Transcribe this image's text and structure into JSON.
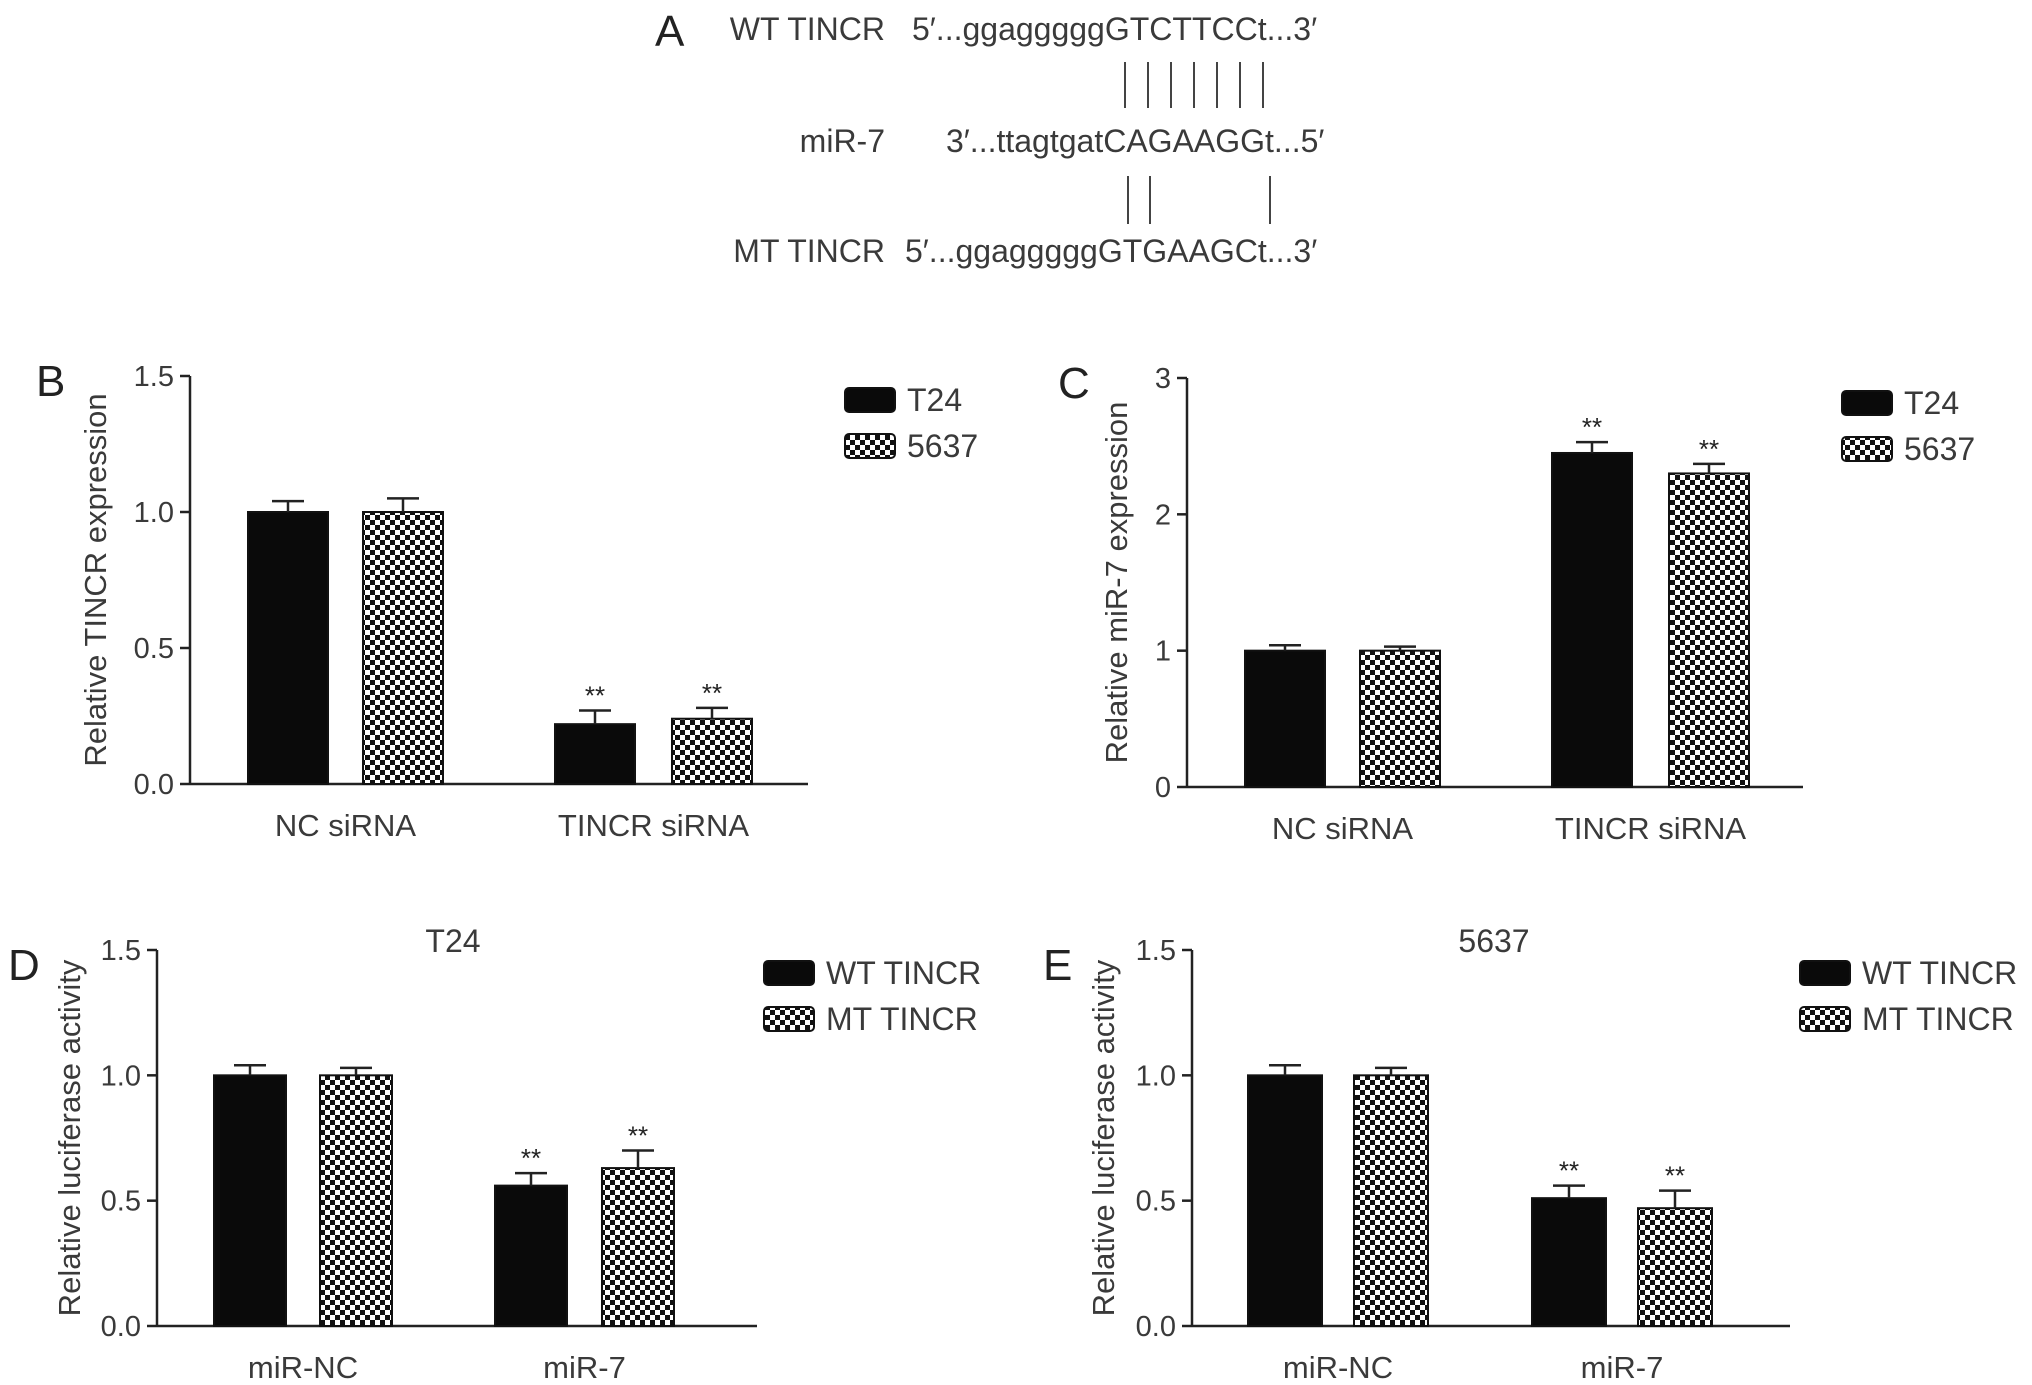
{
  "panelA": {
    "letter": "A",
    "rows": [
      {
        "label": "WT TINCR",
        "seq": "5′...ggagggggGTCTTCCt...3′",
        "lines": [
          0,
          1,
          2,
          3,
          4,
          5,
          6
        ]
      },
      {
        "label": "miR-7",
        "seq": "3′...ttagtgatCAGAAGGt...5′",
        "lines": [
          0,
          1,
          6
        ]
      },
      {
        "label": "MT TINCR",
        "seq": "5′...ggagggggGTGAAGCt...3′"
      }
    ]
  },
  "colors": {
    "solid": "#0a0a0a",
    "check_dark": "#111111",
    "check_light": "#ffffff",
    "axis": "#222222"
  },
  "chart_data": [
    {
      "letter": "B",
      "type": "bar",
      "title": "",
      "ylabel": "Relative TINCR expression",
      "ylim": [
        0,
        1.5
      ],
      "yticks": [
        "0.0",
        "0.5",
        "1.0",
        "1.5"
      ],
      "categories": [
        "NC siRNA",
        "TINCR siRNA"
      ],
      "series": [
        {
          "name": "T24",
          "style": "solid",
          "values": [
            1.0,
            0.22
          ],
          "errors": [
            0.04,
            0.05
          ]
        },
        {
          "name": "5637",
          "style": "checker",
          "values": [
            1.0,
            0.24
          ],
          "errors": [
            0.05,
            0.04
          ]
        }
      ],
      "significance": [
        [
          "",
          "**"
        ],
        [
          "",
          "**"
        ]
      ],
      "legend": "top-right"
    },
    {
      "letter": "C",
      "type": "bar",
      "title": "",
      "ylabel": "Relative miR-7 expression",
      "ylim": [
        0,
        3
      ],
      "yticks": [
        "0",
        "1",
        "2",
        "3"
      ],
      "categories": [
        "NC siRNA",
        "TINCR siRNA"
      ],
      "series": [
        {
          "name": "T24",
          "style": "solid",
          "values": [
            1.0,
            2.45
          ],
          "errors": [
            0.04,
            0.08
          ]
        },
        {
          "name": "5637",
          "style": "checker",
          "values": [
            1.0,
            2.3
          ],
          "errors": [
            0.03,
            0.07
          ]
        }
      ],
      "significance": [
        [
          "",
          "**"
        ],
        [
          "",
          "**"
        ]
      ],
      "legend": "top-right"
    },
    {
      "letter": "D",
      "type": "bar",
      "title": "T24",
      "ylabel": "Relative luciferase activity",
      "ylim": [
        0,
        1.5
      ],
      "yticks": [
        "0.0",
        "0.5",
        "1.0",
        "1.5"
      ],
      "categories": [
        "miR-NC",
        "miR-7"
      ],
      "series": [
        {
          "name": "WT TINCR",
          "style": "solid",
          "values": [
            1.0,
            0.56
          ],
          "errors": [
            0.04,
            0.05
          ]
        },
        {
          "name": "MT TINCR",
          "style": "checker",
          "values": [
            1.0,
            0.63
          ],
          "errors": [
            0.03,
            0.07
          ]
        }
      ],
      "significance": [
        [
          "",
          "**"
        ],
        [
          "",
          "**"
        ]
      ],
      "legend": "top-right"
    },
    {
      "letter": "E",
      "type": "bar",
      "title": "5637",
      "ylabel": "Relative luciferase activity",
      "ylim": [
        0,
        1.5
      ],
      "yticks": [
        "0.0",
        "0.5",
        "1.0",
        "1.5"
      ],
      "categories": [
        "miR-NC",
        "miR-7"
      ],
      "series": [
        {
          "name": "WT TINCR",
          "style": "solid",
          "values": [
            1.0,
            0.51
          ],
          "errors": [
            0.04,
            0.05
          ]
        },
        {
          "name": "MT TINCR",
          "style": "checker",
          "values": [
            1.0,
            0.47
          ],
          "errors": [
            0.03,
            0.07
          ]
        }
      ],
      "significance": [
        [
          "",
          "**"
        ],
        [
          "",
          "**"
        ]
      ],
      "legend": "top-right"
    }
  ]
}
